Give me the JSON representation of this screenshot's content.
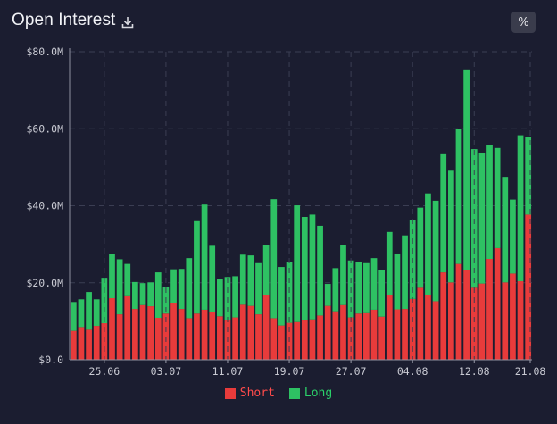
{
  "header": {
    "title": "Open Interest",
    "download_icon": "download-icon",
    "percent_button": "%"
  },
  "colors": {
    "short": "#e83b3b",
    "long": "#2ec163",
    "background": "#1b1d30"
  },
  "chart_data": {
    "type": "bar",
    "stacked": true,
    "x_tick_labels": [
      "25.06",
      "03.07",
      "11.07",
      "19.07",
      "27.07",
      "04.08",
      "12.08",
      "21.08"
    ],
    "y_tick_labels": [
      "$0.0",
      "$20.0M",
      "$40.0M",
      "$60.0M",
      "$80.0M"
    ],
    "ylim": [
      0,
      80
    ],
    "y_unit": "$M",
    "grid": true,
    "legend_position": "bottom",
    "series": [
      {
        "name": "Short",
        "values": [
          7.5,
          8.5,
          7.8,
          8.8,
          9.5,
          16.0,
          11.8,
          16.5,
          13.2,
          14.2,
          13.9,
          10.9,
          12.0,
          14.7,
          13.2,
          10.8,
          12.0,
          13.0,
          12.5,
          11.3,
          10.2,
          11.0,
          14.3,
          14.0,
          11.8,
          16.8,
          10.8,
          8.9,
          9.6,
          9.8,
          10.2,
          10.5,
          11.5,
          14.0,
          12.6,
          14.2,
          11.0,
          12.0,
          12.1,
          13.0,
          11.2,
          16.8,
          13.1,
          13.2,
          15.8,
          18.7,
          16.7,
          15.2,
          22.7,
          20.1,
          24.9,
          23.2,
          18.7,
          19.8,
          26.2,
          29.0,
          20.1,
          22.4,
          20.4,
          37.7
        ]
      },
      {
        "name": "Long",
        "values": [
          7.5,
          7.2,
          9.8,
          6.9,
          11.8,
          11.4,
          14.3,
          8.4,
          7.0,
          5.7,
          6.2,
          11.8,
          7.0,
          8.8,
          10.4,
          15.6,
          24.0,
          27.3,
          17.1,
          9.7,
          11.3,
          10.7,
          13.0,
          13.1,
          13.3,
          13.0,
          30.9,
          15.2,
          15.7,
          30.3,
          26.9,
          27.2,
          23.3,
          5.7,
          11.2,
          15.7,
          14.8,
          13.5,
          13.0,
          13.4,
          12.0,
          16.4,
          14.5,
          19.1,
          20.5,
          20.8,
          26.5,
          26.1,
          30.9,
          29.0,
          35.1,
          52.2,
          36.0,
          34.0,
          29.5,
          26.0,
          27.4,
          19.2,
          37.9,
          20.2
        ]
      }
    ]
  },
  "legend": {
    "short_label": "Short",
    "long_label": "Long"
  }
}
